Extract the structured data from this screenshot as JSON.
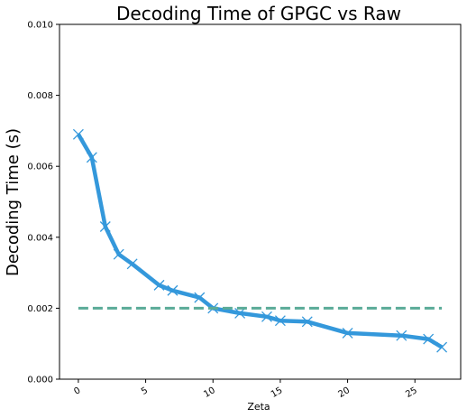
{
  "chart_data": {
    "type": "line",
    "title": "Decoding Time of GPGC vs Raw",
    "xlabel": "Zeta",
    "ylabel": "Decoding Time (s)",
    "xlim": [
      -1.4,
      28.4
    ],
    "ylim": [
      0.0,
      0.01
    ],
    "xticks": [
      0,
      5,
      10,
      15,
      20,
      25
    ],
    "xtick_labels": [
      "0",
      "5",
      "10",
      "15",
      "20",
      "25"
    ],
    "yticks": [
      0.0,
      0.002,
      0.004,
      0.006,
      0.008,
      0.01
    ],
    "ytick_labels": [
      "0.000",
      "0.002",
      "0.004",
      "0.006",
      "0.008",
      "0.010"
    ],
    "grid": false,
    "series": [
      {
        "style": "solid",
        "marker": "x",
        "color": "#3498db",
        "x": [
          0,
          1,
          2,
          3,
          4,
          6,
          7,
          9,
          10,
          12,
          14,
          15,
          17,
          20,
          24,
          26,
          27
        ],
        "y": [
          0.0069,
          0.00625,
          0.0043,
          0.00352,
          0.00325,
          0.00265,
          0.0025,
          0.0023,
          0.002,
          0.00186,
          0.00176,
          0.00165,
          0.00162,
          0.0013,
          0.00123,
          0.00113,
          0.0009
        ]
      },
      {
        "style": "dashed",
        "color": "#5aab98",
        "x": [
          0,
          27
        ],
        "y": [
          0.002,
          0.002
        ]
      }
    ]
  }
}
